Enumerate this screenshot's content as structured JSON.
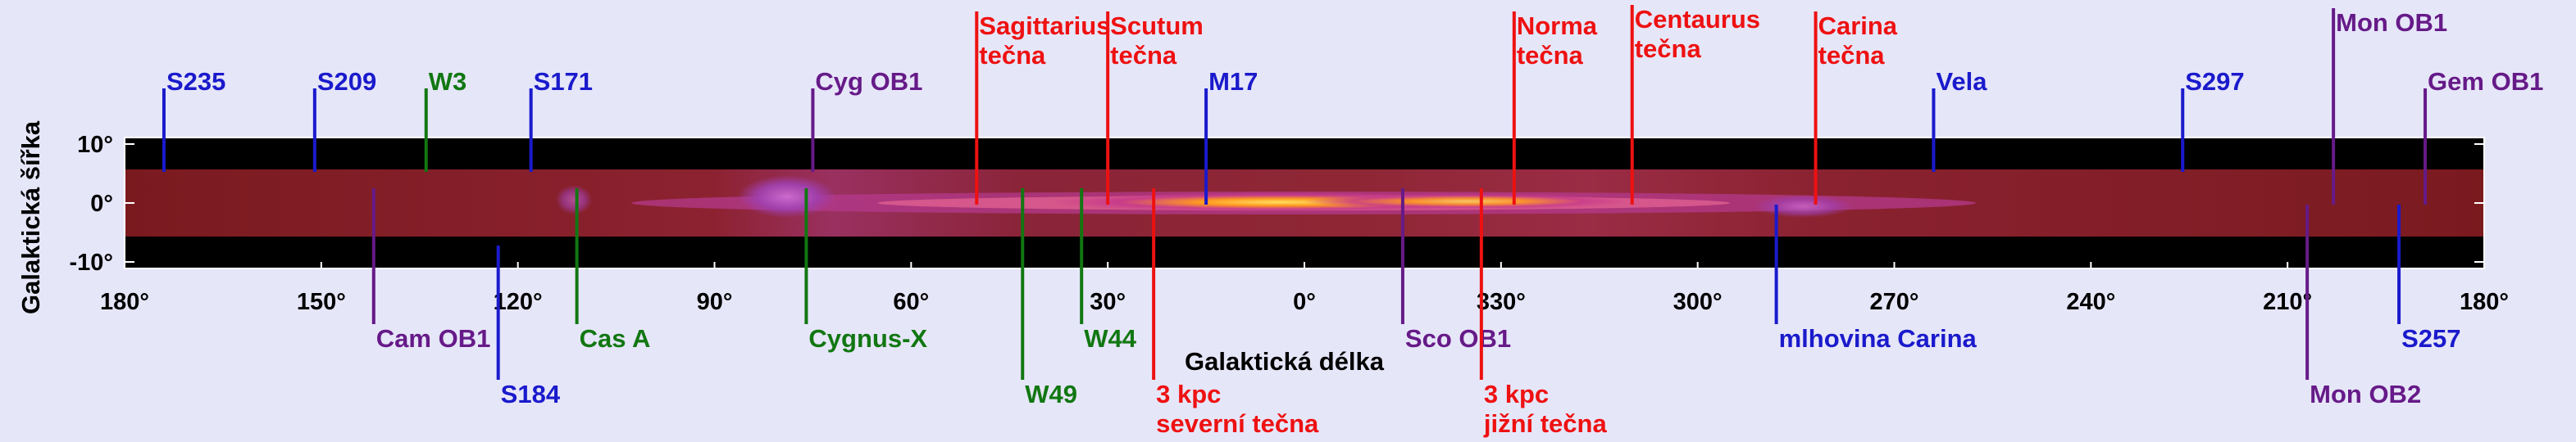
{
  "colors": {
    "background": "#e6e6f9",
    "blue": "#1a1acc",
    "red": "#ee1111",
    "green": "#117711",
    "purple": "#661a88"
  },
  "axes": {
    "xlabel": "Galaktická délka",
    "ylabel": "Galaktická šířka"
  },
  "chart_data": {
    "type": "other",
    "x_ticks": [
      "180°",
      "150°",
      "120°",
      "90°",
      "60°",
      "30°",
      "0°",
      "330°",
      "300°",
      "270°",
      "240°",
      "210°",
      "180°"
    ],
    "y_ticks": [
      "10°",
      "0°",
      "-10°"
    ],
    "xlim": [
      180,
      -180
    ],
    "ylim": [
      -10,
      10
    ]
  },
  "markers": [
    {
      "id": "s235",
      "lines": [
        "S235"
      ],
      "color": "blue",
      "l": 174,
      "side": "top"
    },
    {
      "id": "s209",
      "lines": [
        "S209"
      ],
      "color": "blue",
      "l": 151,
      "side": "top"
    },
    {
      "id": "w3",
      "lines": [
        "W3"
      ],
      "color": "green",
      "l": 134,
      "side": "top"
    },
    {
      "id": "s171",
      "lines": [
        "S171"
      ],
      "color": "blue",
      "l": 118,
      "side": "top"
    },
    {
      "id": "cyg-ob1",
      "lines": [
        "Cyg OB1"
      ],
      "color": "purple",
      "l": 75,
      "side": "top"
    },
    {
      "id": "sagittarius",
      "lines": [
        "Sagittarius",
        "tečna"
      ],
      "color": "red",
      "l": 50,
      "side": "top"
    },
    {
      "id": "scutum",
      "lines": [
        "Scutum",
        "tečna"
      ],
      "color": "red",
      "l": 30,
      "side": "top"
    },
    {
      "id": "m17",
      "lines": [
        "M17"
      ],
      "color": "blue",
      "l": 15,
      "side": "top"
    },
    {
      "id": "norma",
      "lines": [
        "Norma",
        "tečna"
      ],
      "color": "red",
      "l": -32,
      "side": "top"
    },
    {
      "id": "centaurus",
      "lines": [
        "Centaurus",
        "tečna"
      ],
      "color": "red",
      "l": -50,
      "side": "top"
    },
    {
      "id": "carina-tangent",
      "lines": [
        "Carina",
        "tečna"
      ],
      "color": "red",
      "l": -78,
      "side": "top"
    },
    {
      "id": "vela",
      "lines": [
        "Vela"
      ],
      "color": "blue",
      "l": -96,
      "side": "top"
    },
    {
      "id": "s297",
      "lines": [
        "S297"
      ],
      "color": "blue",
      "l": -134,
      "side": "top"
    },
    {
      "id": "mon-ob1",
      "lines": [
        "Mon OB1"
      ],
      "color": "purple",
      "l": -157,
      "side": "top"
    },
    {
      "id": "gem-ob1",
      "lines": [
        "Gem OB1"
      ],
      "color": "purple",
      "l": -171,
      "side": "top"
    },
    {
      "id": "cam-ob1",
      "lines": [
        "Cam OB1"
      ],
      "color": "purple",
      "l": 142,
      "side": "bottom"
    },
    {
      "id": "s184",
      "lines": [
        "S184"
      ],
      "color": "blue",
      "l": 123,
      "side": "bottom"
    },
    {
      "id": "cas-a",
      "lines": [
        "Cas A"
      ],
      "color": "green",
      "l": 111,
      "side": "bottom"
    },
    {
      "id": "cygnus-x",
      "lines": [
        "Cygnus-X"
      ],
      "color": "green",
      "l": 76,
      "side": "bottom"
    },
    {
      "id": "w49",
      "lines": [
        "W49"
      ],
      "color": "green",
      "l": 43,
      "side": "bottom"
    },
    {
      "id": "w44",
      "lines": [
        "W44"
      ],
      "color": "green",
      "l": 34,
      "side": "bottom"
    },
    {
      "id": "3kpc-north",
      "lines": [
        "3 kpc",
        "severní tečna"
      ],
      "color": "red",
      "l": 23,
      "side": "bottom"
    },
    {
      "id": "sco-ob1",
      "lines": [
        "Sco OB1"
      ],
      "color": "purple",
      "l": -15,
      "side": "bottom"
    },
    {
      "id": "3kpc-south",
      "lines": [
        "3 kpc",
        "jižní tečna"
      ],
      "color": "red",
      "l": -27,
      "side": "bottom"
    },
    {
      "id": "carina-nebula",
      "lines": [
        "mlhovina Carina"
      ],
      "color": "blue",
      "l": -72,
      "side": "bottom"
    },
    {
      "id": "mon-ob2",
      "lines": [
        "Mon OB2"
      ],
      "color": "purple",
      "l": -153,
      "side": "bottom"
    },
    {
      "id": "s257",
      "lines": [
        "S257"
      ],
      "color": "blue",
      "l": -167,
      "side": "bottom"
    }
  ]
}
